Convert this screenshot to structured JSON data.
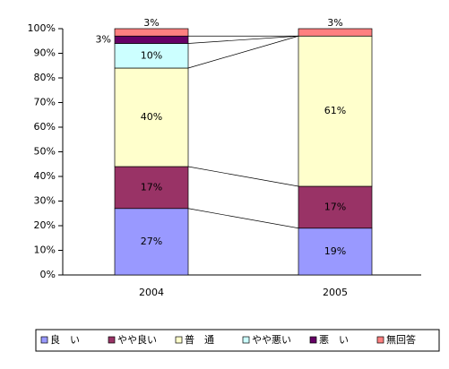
{
  "chart_data": {
    "type": "stacked-bar-100",
    "categories": [
      "2004",
      "2005"
    ],
    "series": [
      {
        "name": "良　い",
        "color": "#9999ff",
        "values": [
          27,
          19
        ],
        "value_labels": [
          "27%",
          "19%"
        ]
      },
      {
        "name": "やや良い",
        "color": "#993366",
        "values": [
          17,
          17
        ],
        "value_labels": [
          "17%",
          "17%"
        ]
      },
      {
        "name": "普　通",
        "color": "#ffffcc",
        "values": [
          40,
          61
        ],
        "value_labels": [
          "40%",
          "61%"
        ]
      },
      {
        "name": "やや悪い",
        "color": "#ccffff",
        "values": [
          10,
          0
        ],
        "value_labels": [
          "10%",
          null
        ]
      },
      {
        "name": "悪　い",
        "color": "#660066",
        "values": [
          3,
          0
        ],
        "value_labels": [
          "3%",
          null
        ]
      },
      {
        "name": "無回答",
        "color": "#ff8080",
        "values": [
          3,
          3
        ],
        "value_labels": [
          "3%",
          "3%"
        ]
      }
    ],
    "ylim": [
      0,
      100
    ],
    "yticks": [
      {
        "value": 0,
        "label": "0%"
      },
      {
        "value": 10,
        "label": "10%"
      },
      {
        "value": 20,
        "label": "20%"
      },
      {
        "value": 30,
        "label": "30%"
      },
      {
        "value": 40,
        "label": "40%"
      },
      {
        "value": 50,
        "label": "50%"
      },
      {
        "value": 60,
        "label": "60%"
      },
      {
        "value": 70,
        "label": "70%"
      },
      {
        "value": 80,
        "label": "80%"
      },
      {
        "value": 90,
        "label": "90%"
      },
      {
        "value": 100,
        "label": "100%"
      }
    ],
    "series_lines": true
  }
}
